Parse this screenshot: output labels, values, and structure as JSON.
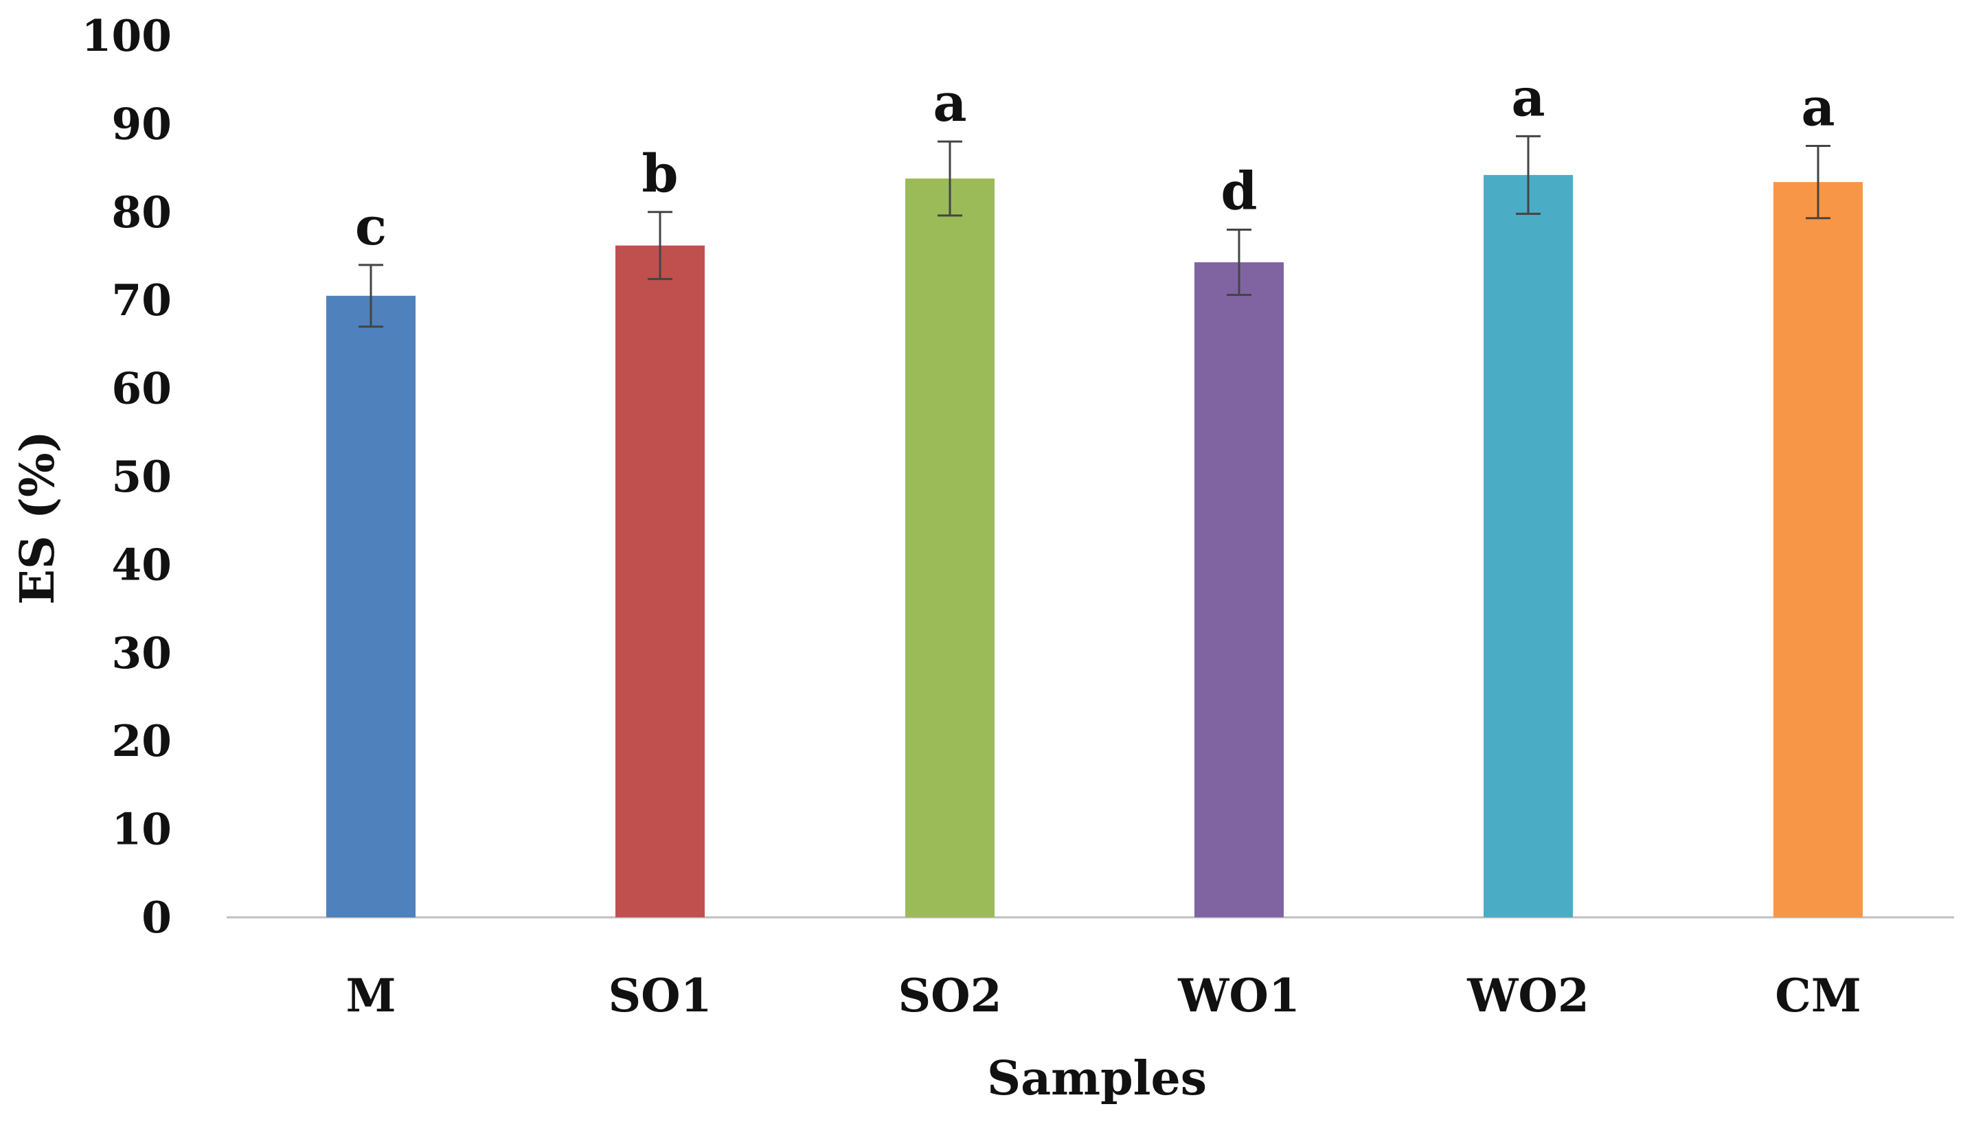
{
  "chart_data": {
    "type": "bar",
    "title": "",
    "xlabel": "Samples",
    "ylabel": "ES (%)",
    "ylim": [
      0,
      100
    ],
    "yticks": [
      "0",
      "10",
      "20",
      "30",
      "40",
      "50",
      "60",
      "70",
      "80",
      "90",
      "100"
    ],
    "grid": false,
    "legend": "none",
    "categories": [
      "M",
      "SO1",
      "SO2",
      "WO1",
      "WO2",
      "CM"
    ],
    "values": [
      70.5,
      76.2,
      83.8,
      74.3,
      84.2,
      83.4
    ],
    "errors": [
      3.5,
      3.8,
      4.2,
      3.7,
      4.4,
      4.1
    ],
    "significance_letters": [
      "c",
      "b",
      "a",
      "d",
      "a",
      "a"
    ],
    "colors": [
      "#4F81BD",
      "#C0504D",
      "#9BBB59",
      "#8064A2",
      "#4BACC6",
      "#F79646"
    ],
    "error_bar_color": "#444444",
    "axis_line_color": "#bfbfbf"
  }
}
